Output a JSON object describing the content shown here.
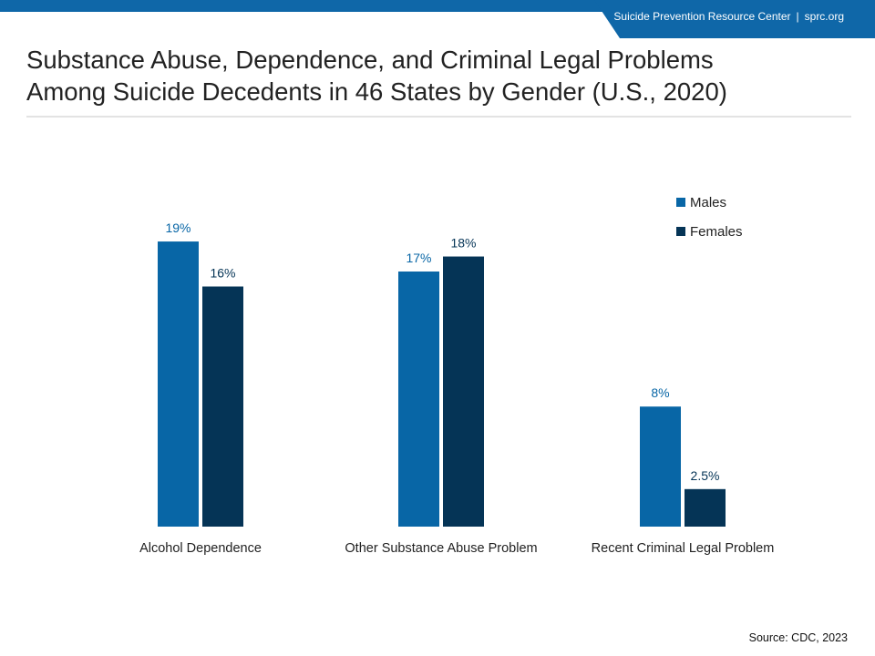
{
  "header": {
    "org_name": "Suicide Prevention Resource Center",
    "separator": "|",
    "site": "sprc.org"
  },
  "title_line1": "Substance Abuse, Dependence, and Criminal Legal Problems",
  "title_line2": "Among Suicide Decedents in 46 States by Gender (U.S., 2020)",
  "source": "Source: CDC, 2023",
  "colors": {
    "brand": "#0f67a8",
    "males": "#0866a6",
    "females": "#053456"
  },
  "chart_data": {
    "type": "bar",
    "title": "Substance Abuse, Dependence, and Criminal Legal Problems Among Suicide Decedents in 46 States by Gender (U.S., 2020)",
    "categories": [
      "Alcohol Dependence",
      "Other Substance Abuse Problem",
      "Recent Criminal Legal Problem"
    ],
    "series": [
      {
        "name": "Males",
        "values": [
          19,
          17,
          8
        ],
        "labels": [
          "19%",
          "17%",
          "8%"
        ],
        "color": "#0866a6"
      },
      {
        "name": "Females",
        "values": [
          16,
          18,
          2.5
        ],
        "labels": [
          "16%",
          "18%",
          "2.5%"
        ],
        "color": "#053456"
      }
    ],
    "ylim": [
      0,
      19
    ],
    "grid": false,
    "y_axis_visible": false,
    "legend": "top-right",
    "source": "Source: CDC, 2023"
  }
}
